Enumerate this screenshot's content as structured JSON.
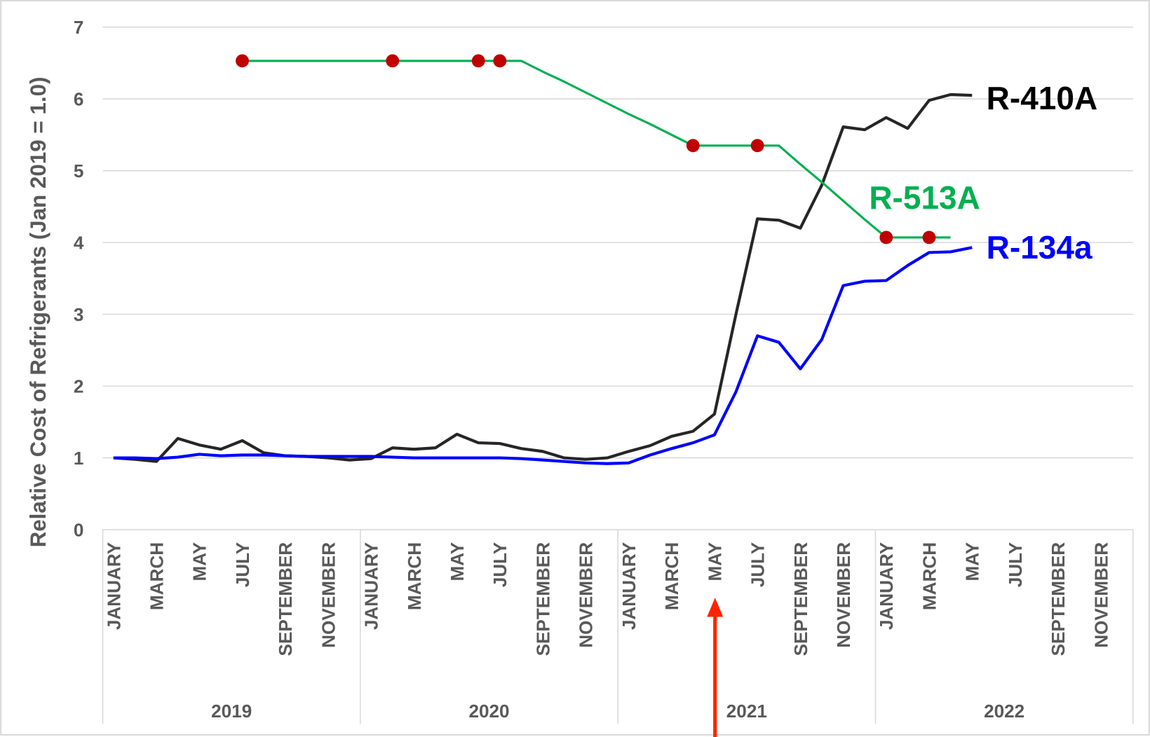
{
  "chart_data": {
    "type": "line",
    "y_label": "Relative Cost of Refrigerants (Jan 2019 = 1.0)",
    "categories": [
      "JANUARY",
      null,
      "MARCH",
      null,
      "MAY",
      null,
      "JULY",
      null,
      "SEPTEMBER",
      null,
      "NOVEMBER",
      null,
      "JANUARY",
      null,
      "MARCH",
      null,
      "MAY",
      null,
      "JULY",
      null,
      "SEPTEMBER",
      null,
      "NOVEMBER",
      null,
      "JANUARY",
      null,
      "MARCH",
      null,
      "MAY",
      null,
      "JULY",
      null,
      "SEPTEMBER",
      null,
      "NOVEMBER",
      null,
      "JANUARY",
      null,
      "MARCH",
      null,
      "MAY",
      null,
      "JULY",
      null,
      "SEPTEMBER",
      null,
      "NOVEMBER",
      null
    ],
    "years": [
      "2019",
      "2020",
      "2021",
      "2022"
    ],
    "ylim": [
      0,
      7
    ],
    "yticks": [
      0,
      1,
      2,
      3,
      4,
      5,
      6,
      7
    ],
    "grid": true,
    "series": [
      {
        "name": "R-410A",
        "color": "#262626",
        "values": [
          1.0,
          0.98,
          0.95,
          1.27,
          1.18,
          1.12,
          1.24,
          1.07,
          1.03,
          1.02,
          1.0,
          0.97,
          0.99,
          1.14,
          1.12,
          1.14,
          1.33,
          1.21,
          1.2,
          1.13,
          1.09,
          1.0,
          0.98,
          1.0,
          1.09,
          1.17,
          1.3,
          1.37,
          1.61,
          3.0,
          4.33,
          4.31,
          4.2,
          4.8,
          5.61,
          5.57,
          5.74,
          5.59,
          5.98,
          6.06,
          6.05,
          null,
          null,
          null,
          null,
          null,
          null,
          null
        ]
      },
      {
        "name": "R-513A",
        "color": "#00b050",
        "values": [
          null,
          null,
          null,
          null,
          null,
          null,
          6.53,
          6.53,
          6.53,
          6.53,
          6.53,
          6.53,
          6.53,
          6.53,
          6.53,
          6.53,
          6.53,
          6.53,
          6.53,
          6.53,
          6.38,
          6.24,
          6.09,
          5.94,
          5.79,
          5.65,
          5.5,
          5.35,
          5.35,
          5.35,
          5.35,
          5.35,
          5.09,
          4.84,
          4.58,
          4.32,
          4.07,
          4.07,
          4.07,
          4.07,
          null,
          null,
          null,
          null,
          null,
          null,
          null,
          null
        ]
      },
      {
        "name": "R-134a",
        "color": "#0000ff",
        "values": [
          1.0,
          1.0,
          0.99,
          1.01,
          1.05,
          1.03,
          1.04,
          1.04,
          1.03,
          1.02,
          1.02,
          1.02,
          1.02,
          1.01,
          1.0,
          1.0,
          1.0,
          1.0,
          1.0,
          0.99,
          0.97,
          0.95,
          0.93,
          0.92,
          0.93,
          1.04,
          1.13,
          1.21,
          1.32,
          1.92,
          2.7,
          2.61,
          2.24,
          2.65,
          3.4,
          3.46,
          3.47,
          3.68,
          3.86,
          3.87,
          3.93,
          null,
          null,
          null,
          null,
          null,
          null,
          null
        ]
      },
      {
        "style": "markers",
        "color": "#c00000",
        "values": [
          null,
          null,
          null,
          null,
          null,
          null,
          6.53,
          null,
          null,
          null,
          null,
          null,
          null,
          6.53,
          null,
          null,
          null,
          6.53,
          6.53,
          null,
          null,
          null,
          null,
          null,
          null,
          null,
          null,
          5.35,
          null,
          null,
          5.35,
          null,
          null,
          null,
          null,
          null,
          4.07,
          null,
          4.07,
          null,
          null,
          null,
          null,
          null,
          null,
          null,
          null,
          null
        ]
      }
    ]
  }
}
